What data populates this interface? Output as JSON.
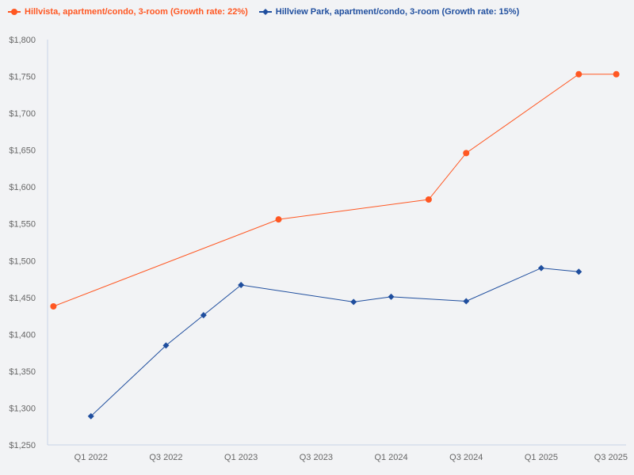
{
  "chart_data": {
    "type": "line",
    "title": "",
    "xlabel": "",
    "ylabel": "",
    "x": [
      "Q4 2021",
      "Q1 2022",
      "Q2 2022",
      "Q3 2022",
      "Q4 2022",
      "Q1 2023",
      "Q2 2023",
      "Q3 2023",
      "Q4 2023",
      "Q1 2024",
      "Q2 2024",
      "Q3 2024",
      "Q4 2024",
      "Q1 2025",
      "Q2 2025",
      "Q3 2025"
    ],
    "x_tick_labels": [
      "Q1 2022",
      "Q3 2022",
      "Q1 2023",
      "Q3 2023",
      "Q1 2024",
      "Q3 2024",
      "Q1 2025",
      "Q3 2025"
    ],
    "ylim": [
      1250,
      1800
    ],
    "y_tick_labels": [
      "$1,250",
      "$1,300",
      "$1,350",
      "$1,400",
      "$1,450",
      "$1,500",
      "$1,550",
      "$1,600",
      "$1,650",
      "$1,700",
      "$1,750",
      "$1,800"
    ],
    "grid": false,
    "legend_position": "top-left",
    "series": [
      {
        "name": "Hillvista, apartment/condo, 3-room (Growth rate: 22%)",
        "color": "#ff5722",
        "marker": "circle",
        "values": [
          1438,
          null,
          null,
          null,
          null,
          null,
          1556,
          null,
          null,
          null,
          1583,
          1646,
          null,
          null,
          1753,
          1753
        ]
      },
      {
        "name": "Hillview Park, apartment/condo, 3-room (Growth rate: 15%)",
        "color": "#1f4e9e",
        "marker": "diamond",
        "values": [
          null,
          1289,
          null,
          1385,
          1426,
          1467,
          null,
          null,
          1444,
          1451,
          null,
          1445,
          null,
          1490,
          1485,
          null
        ]
      }
    ]
  }
}
